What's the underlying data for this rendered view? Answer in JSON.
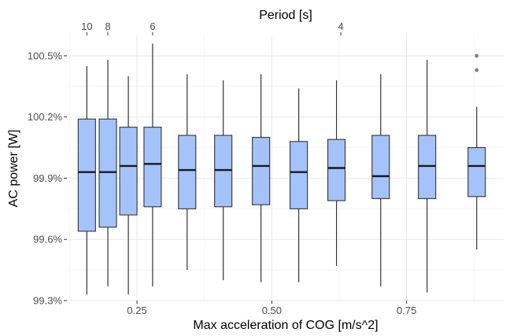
{
  "chart_data": {
    "type": "boxplot",
    "title": "",
    "xlabel": "Max acceleration of COG [m/s^2]",
    "ylabel": "AC power [W]",
    "x2label": "Period [s]",
    "xlim": [
      0.12,
      0.93
    ],
    "ylim": [
      99.3,
      100.6
    ],
    "grid": true,
    "colors": {
      "box_fill": "#a4c3fb",
      "outline": "#333333",
      "grid_major": "#ebebeb",
      "grid_minor": "#f5f5f5",
      "outlier": "#808080"
    },
    "x_ticks": [
      0.25,
      0.5,
      0.75
    ],
    "x_tick_labels": [
      "0.25",
      "0.50",
      "0.75"
    ],
    "y_ticks": [
      99.3,
      99.6,
      99.9,
      100.2,
      100.5
    ],
    "y_tick_labels": [
      "99.3%",
      "99.6%",
      "99.9%",
      "100.2%",
      "100.5%"
    ],
    "top_ticks": [
      {
        "label": "10",
        "x": 0.157
      },
      {
        "label": "8",
        "x": 0.196
      },
      {
        "label": "6",
        "x": 0.279
      },
      {
        "label": "4",
        "x": 0.628
      }
    ],
    "boxes": [
      {
        "x": 0.157,
        "whisker_low": 99.33,
        "q1": 99.64,
        "median": 99.93,
        "q3": 100.19,
        "whisker_high": 100.45,
        "outliers": []
      },
      {
        "x": 0.196,
        "whisker_low": 99.37,
        "q1": 99.66,
        "median": 99.93,
        "q3": 100.19,
        "whisker_high": 100.48,
        "outliers": []
      },
      {
        "x": 0.234,
        "whisker_low": 99.33,
        "q1": 99.72,
        "median": 99.96,
        "q3": 100.15,
        "whisker_high": 100.4,
        "outliers": []
      },
      {
        "x": 0.279,
        "whisker_low": 99.37,
        "q1": 99.76,
        "median": 99.97,
        "q3": 100.15,
        "whisker_high": 100.56,
        "outliers": []
      },
      {
        "x": 0.343,
        "whisker_low": 99.45,
        "q1": 99.75,
        "median": 99.94,
        "q3": 100.11,
        "whisker_high": 100.41,
        "outliers": []
      },
      {
        "x": 0.41,
        "whisker_low": 99.4,
        "q1": 99.76,
        "median": 99.94,
        "q3": 100.11,
        "whisker_high": 100.38,
        "outliers": []
      },
      {
        "x": 0.48,
        "whisker_low": 99.39,
        "q1": 99.77,
        "median": 99.96,
        "q3": 100.1,
        "whisker_high": 100.41,
        "outliers": []
      },
      {
        "x": 0.55,
        "whisker_low": 99.39,
        "q1": 99.75,
        "median": 99.93,
        "q3": 100.08,
        "whisker_high": 100.34,
        "outliers": []
      },
      {
        "x": 0.62,
        "whisker_low": 99.47,
        "q1": 99.79,
        "median": 99.95,
        "q3": 100.09,
        "whisker_high": 100.38,
        "outliers": []
      },
      {
        "x": 0.702,
        "whisker_low": 99.37,
        "q1": 99.8,
        "median": 99.91,
        "q3": 100.11,
        "whisker_high": 100.41,
        "outliers": []
      },
      {
        "x": 0.788,
        "whisker_low": 99.34,
        "q1": 99.8,
        "median": 99.96,
        "q3": 100.11,
        "whisker_high": 100.48,
        "outliers": []
      },
      {
        "x": 0.88,
        "whisker_low": 99.55,
        "q1": 99.81,
        "median": 99.96,
        "q3": 100.05,
        "whisker_high": 100.25,
        "outliers": [
          100.43,
          100.5
        ]
      }
    ]
  }
}
